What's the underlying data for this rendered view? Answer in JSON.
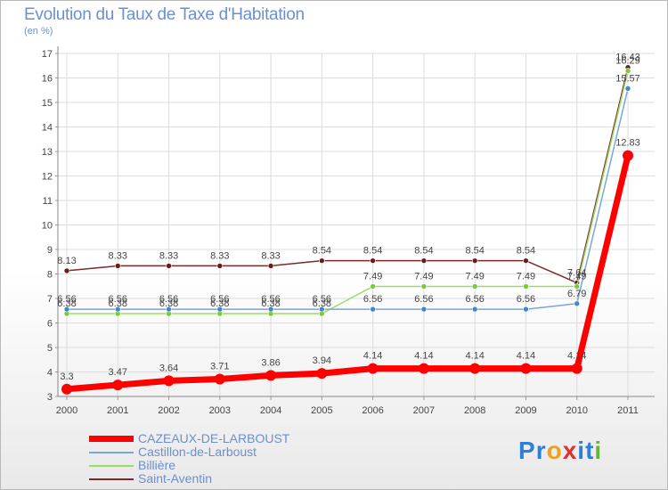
{
  "title": "Evolution du Taux de Taxe d'Habitation",
  "subtitle": "(en %)",
  "logo": {
    "text": "Proxiti",
    "letters": [
      "P",
      "r",
      "o",
      "x",
      "i",
      "t",
      "i"
    ],
    "colors": [
      "#2f7fd6",
      "#2f7fd6",
      "#f0a020",
      "#e03030",
      "#2f7fd6",
      "#2f7fd6",
      "#66b33a"
    ]
  },
  "chart_data": {
    "type": "line",
    "title": "Evolution du Taux de Taxe d'Habitation",
    "ylabel": "(en %)",
    "xlabel": "",
    "x": [
      "2000",
      "2001",
      "2002",
      "2003",
      "2004",
      "2005",
      "2006",
      "2007",
      "2008",
      "2009",
      "2010",
      "2011"
    ],
    "ylim": [
      3,
      17
    ],
    "yticks": [
      3,
      4,
      5,
      6,
      7,
      8,
      9,
      10,
      11,
      12,
      13,
      14,
      15,
      16,
      17
    ],
    "grid": true,
    "legend_position": "bottom-left",
    "series": [
      {
        "name": "CAZEAUX-DE-LARBOUST",
        "color": "#ff0000",
        "width": 7,
        "values": [
          3.3,
          3.47,
          3.64,
          3.71,
          3.86,
          3.94,
          4.14,
          4.14,
          4.14,
          4.14,
          4.14,
          12.83
        ],
        "labels": [
          "3.3",
          "3.47",
          "3.64",
          "3.71",
          "3.86",
          "3.94",
          "4.14",
          "4.14",
          "4.14",
          "4.14",
          "4.14",
          "12.83"
        ]
      },
      {
        "name": "Castillon-de-Larboust",
        "color": "#7aa6d6",
        "width": 1.5,
        "values": [
          6.56,
          6.56,
          6.56,
          6.56,
          6.56,
          6.56,
          6.56,
          6.56,
          6.56,
          6.56,
          6.79,
          15.57
        ],
        "labels": [
          "6.56",
          "6.56",
          "6.56",
          "6.56",
          "6.56",
          "6.56",
          "6.56",
          "6.56",
          "6.56",
          "6.56",
          "6.79",
          "15.57"
        ]
      },
      {
        "name": "Billière",
        "color": "#99dd66",
        "width": 1.5,
        "values": [
          6.38,
          6.38,
          6.38,
          6.38,
          6.38,
          6.38,
          7.49,
          7.49,
          7.49,
          7.49,
          7.49,
          16.29
        ],
        "labels": [
          "6.38",
          "6.38",
          "6.38",
          "6.38",
          "6.38",
          "6.38",
          "7.49",
          "7.49",
          "7.49",
          "7.49",
          "7.49",
          "16.29"
        ]
      },
      {
        "name": "Saint-Aventin",
        "color": "#7a2a2a",
        "width": 1.5,
        "values": [
          8.13,
          8.33,
          8.33,
          8.33,
          8.33,
          8.54,
          8.54,
          8.54,
          8.54,
          8.54,
          7.64,
          16.43
        ],
        "labels": [
          "8.13",
          "8.33",
          "8.33",
          "8.33",
          "8.33",
          "8.54",
          "8.54",
          "8.54",
          "8.54",
          "8.54",
          "7.64",
          "16.43"
        ]
      }
    ]
  }
}
